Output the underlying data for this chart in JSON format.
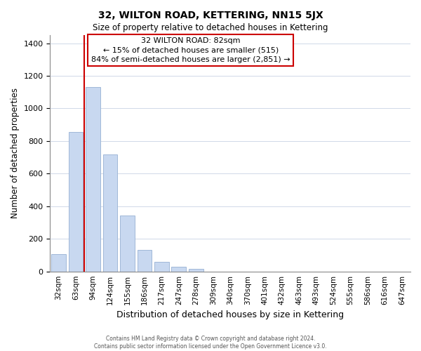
{
  "title": "32, WILTON ROAD, KETTERING, NN15 5JX",
  "subtitle": "Size of property relative to detached houses in Kettering",
  "xlabel": "Distribution of detached houses by size in Kettering",
  "ylabel": "Number of detached properties",
  "bar_labels": [
    "32sqm",
    "63sqm",
    "94sqm",
    "124sqm",
    "155sqm",
    "186sqm",
    "217sqm",
    "247sqm",
    "278sqm",
    "309sqm",
    "340sqm",
    "370sqm",
    "401sqm",
    "432sqm",
    "463sqm",
    "493sqm",
    "524sqm",
    "555sqm",
    "586sqm",
    "616sqm",
    "647sqm"
  ],
  "bar_values": [
    105,
    855,
    1130,
    720,
    345,
    130,
    60,
    30,
    15,
    0,
    0,
    0,
    0,
    0,
    0,
    0,
    0,
    0,
    0,
    0,
    0
  ],
  "bar_color": "#c8d8f0",
  "bar_edge_color": "#a0b8d8",
  "vline_color": "#cc0000",
  "ylim": [
    0,
    1450
  ],
  "yticks": [
    0,
    200,
    400,
    600,
    800,
    1000,
    1200,
    1400
  ],
  "annotation_title": "32 WILTON ROAD: 82sqm",
  "annotation_line1": "← 15% of detached houses are smaller (515)",
  "annotation_line2": "84% of semi-detached houses are larger (2,851) →",
  "annotation_box_color": "#ffffff",
  "annotation_box_edge": "#cc0000",
  "footer1": "Contains HM Land Registry data © Crown copyright and database right 2024.",
  "footer2": "Contains public sector information licensed under the Open Government Licence v3.0."
}
